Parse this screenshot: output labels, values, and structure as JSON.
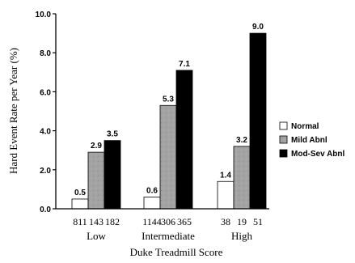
{
  "chart_data": {
    "type": "bar",
    "title": "",
    "ylabel": "Hard Event Rate per Year (%)",
    "xlabel": "Duke Treadmill Score",
    "ylim": [
      0,
      10
    ],
    "yticks": [
      "0.0",
      "2.0",
      "4.0",
      "6.0",
      "8.0",
      "10.0"
    ],
    "grid": false,
    "legend_position": "right",
    "groups": [
      {
        "label": "Low",
        "counts": [
          "811",
          "143",
          "182"
        ]
      },
      {
        "label": "Intermediate",
        "counts": [
          "1144",
          "306",
          "365"
        ]
      },
      {
        "label": "High",
        "counts": [
          "38",
          "19",
          "51"
        ]
      }
    ],
    "series": [
      {
        "name": "Normal",
        "color": "#ffffff",
        "values": [
          0.5,
          0.6,
          1.4
        ],
        "labels": [
          "0.5",
          "0.6",
          "1.4"
        ]
      },
      {
        "name": "Mild Abnl",
        "color": "#a3a3a3",
        "values": [
          2.9,
          5.3,
          3.2
        ],
        "labels": [
          "2.9",
          "5.3",
          "3.2"
        ]
      },
      {
        "name": "Mod-Sev Abnl",
        "color": "#000000",
        "values": [
          3.5,
          7.1,
          9.0
        ],
        "labels": [
          "3.5",
          "7.1",
          "9.0"
        ]
      }
    ]
  }
}
